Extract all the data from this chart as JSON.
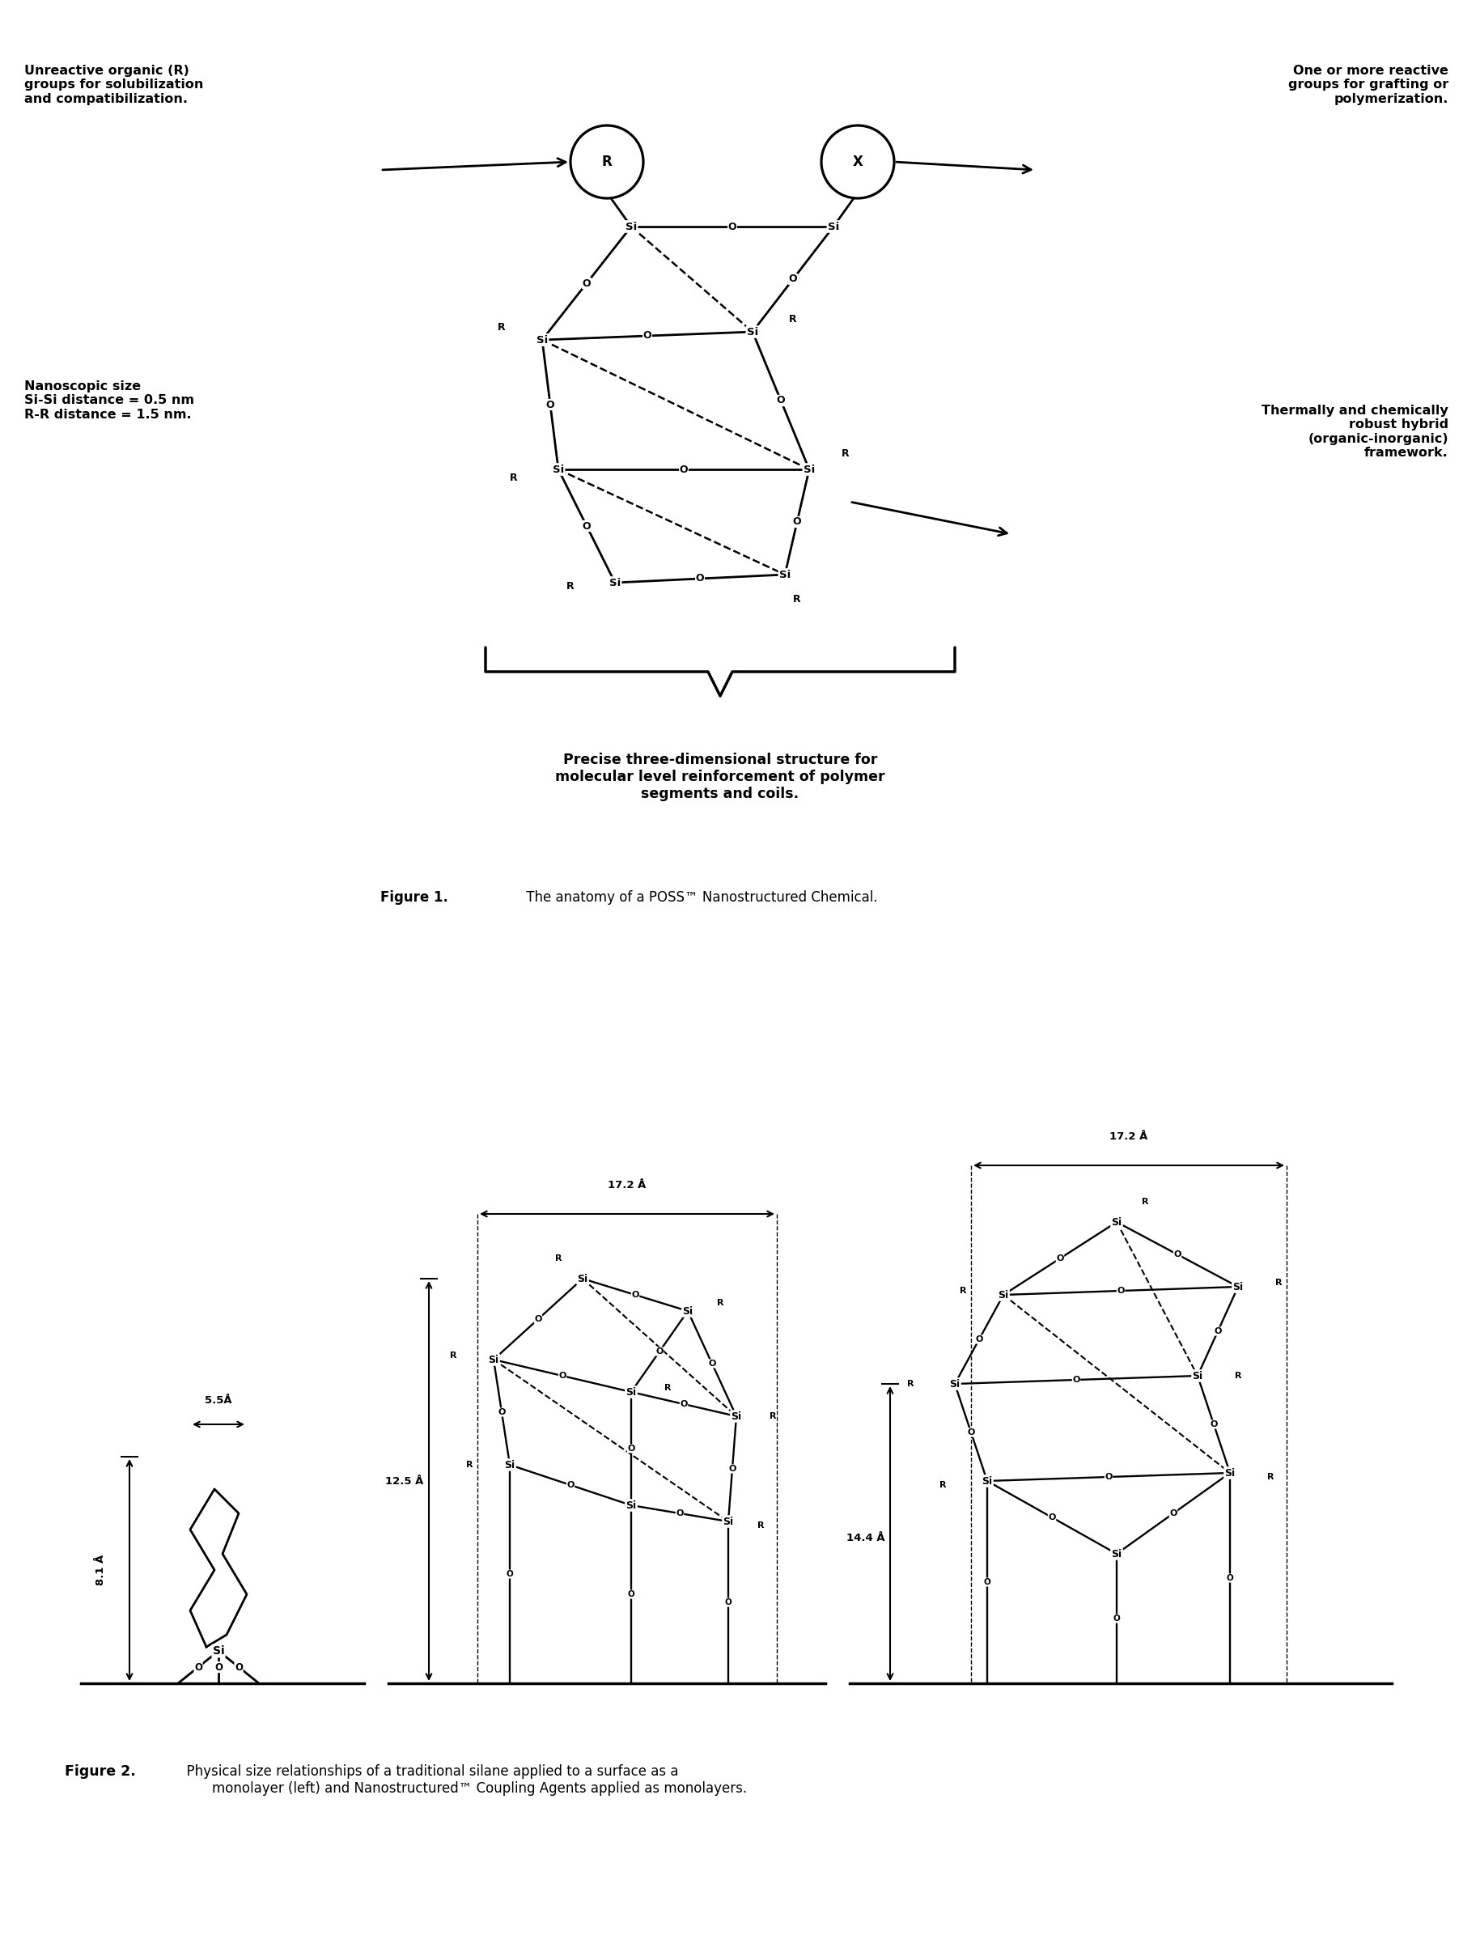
{
  "fig_width": 18.29,
  "fig_height": 24.12,
  "bg_color": "#ffffff",
  "label_unreactive": "Unreactive organic (R)\ngroups for solubilization\nand compatibilization.",
  "label_reactive": "One or more reactive\ngroups for grafting or\npolymerization.",
  "label_nanoscopic": "Nanoscopic size\nSi-Si distance = 0.5 nm\nR-R distance = 1.5 nm.",
  "label_thermally": "Thermally and chemically\nrobust hybrid\n(organic-inorganic)\nframework.",
  "label_precise": "Precise three-dimensional structure for\nmolecular level reinforcement of polymer\nsegments and coils.",
  "fig1_bold": "Figure 1.",
  "fig1_rest": " The anatomy of a POSS™ Nanostructured Chemical.",
  "fig2_bold": "Figure 2.",
  "fig2_rest": "  Physical size relationships of a traditional silane applied to a surface as a\n        monolayer (left) and Nanostructured™ Coupling Agents applied as monolayers.",
  "dim_55": "5.5Å",
  "dim_81": "8.1 Å",
  "dim_125": "12.5 Å",
  "dim_172a": "17.2 Å",
  "dim_172b": "17.2 Å",
  "dim_144": "14.4 Å"
}
